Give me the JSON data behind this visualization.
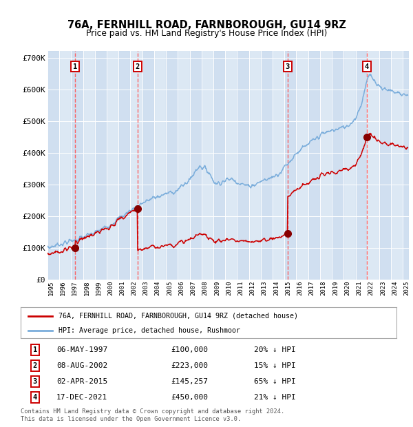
{
  "title1": "76A, FERNHILL ROAD, FARNBOROUGH, GU14 9RZ",
  "title2": "Price paid vs. HM Land Registry's House Price Index (HPI)",
  "xlim": [
    1995.0,
    2025.5
  ],
  "ylim": [
    0,
    720000
  ],
  "yticks": [
    0,
    100000,
    200000,
    300000,
    400000,
    500000,
    600000,
    700000
  ],
  "ytick_labels": [
    "£0",
    "£100K",
    "£200K",
    "£300K",
    "£400K",
    "£500K",
    "£600K",
    "£700K"
  ],
  "sale_dates": [
    1997.35,
    2002.6,
    2015.25,
    2021.96
  ],
  "sale_prices": [
    100000,
    223000,
    145257,
    450000
  ],
  "sale_numbers": [
    "1",
    "2",
    "3",
    "4"
  ],
  "legend_red_label": "76A, FERNHILL ROAD, FARNBOROUGH, GU14 9RZ (detached house)",
  "legend_blue_label": "HPI: Average price, detached house, Rushmoor",
  "table_rows": [
    [
      "1",
      "06-MAY-1997",
      "£100,000",
      "20% ↓ HPI"
    ],
    [
      "2",
      "08-AUG-2002",
      "£223,000",
      "15% ↓ HPI"
    ],
    [
      "3",
      "02-APR-2015",
      "£145,257",
      "65% ↓ HPI"
    ],
    [
      "4",
      "17-DEC-2021",
      "£450,000",
      "21% ↓ HPI"
    ]
  ],
  "footnote1": "Contains HM Land Registry data © Crown copyright and database right 2024.",
  "footnote2": "This data is licensed under the Open Government Licence v3.0.",
  "plot_bg_color": "#dce8f4",
  "red_line_color": "#cc0000",
  "blue_line_color": "#7aaddb",
  "grid_color": "#ffffff",
  "dashed_color": "#ff5555"
}
